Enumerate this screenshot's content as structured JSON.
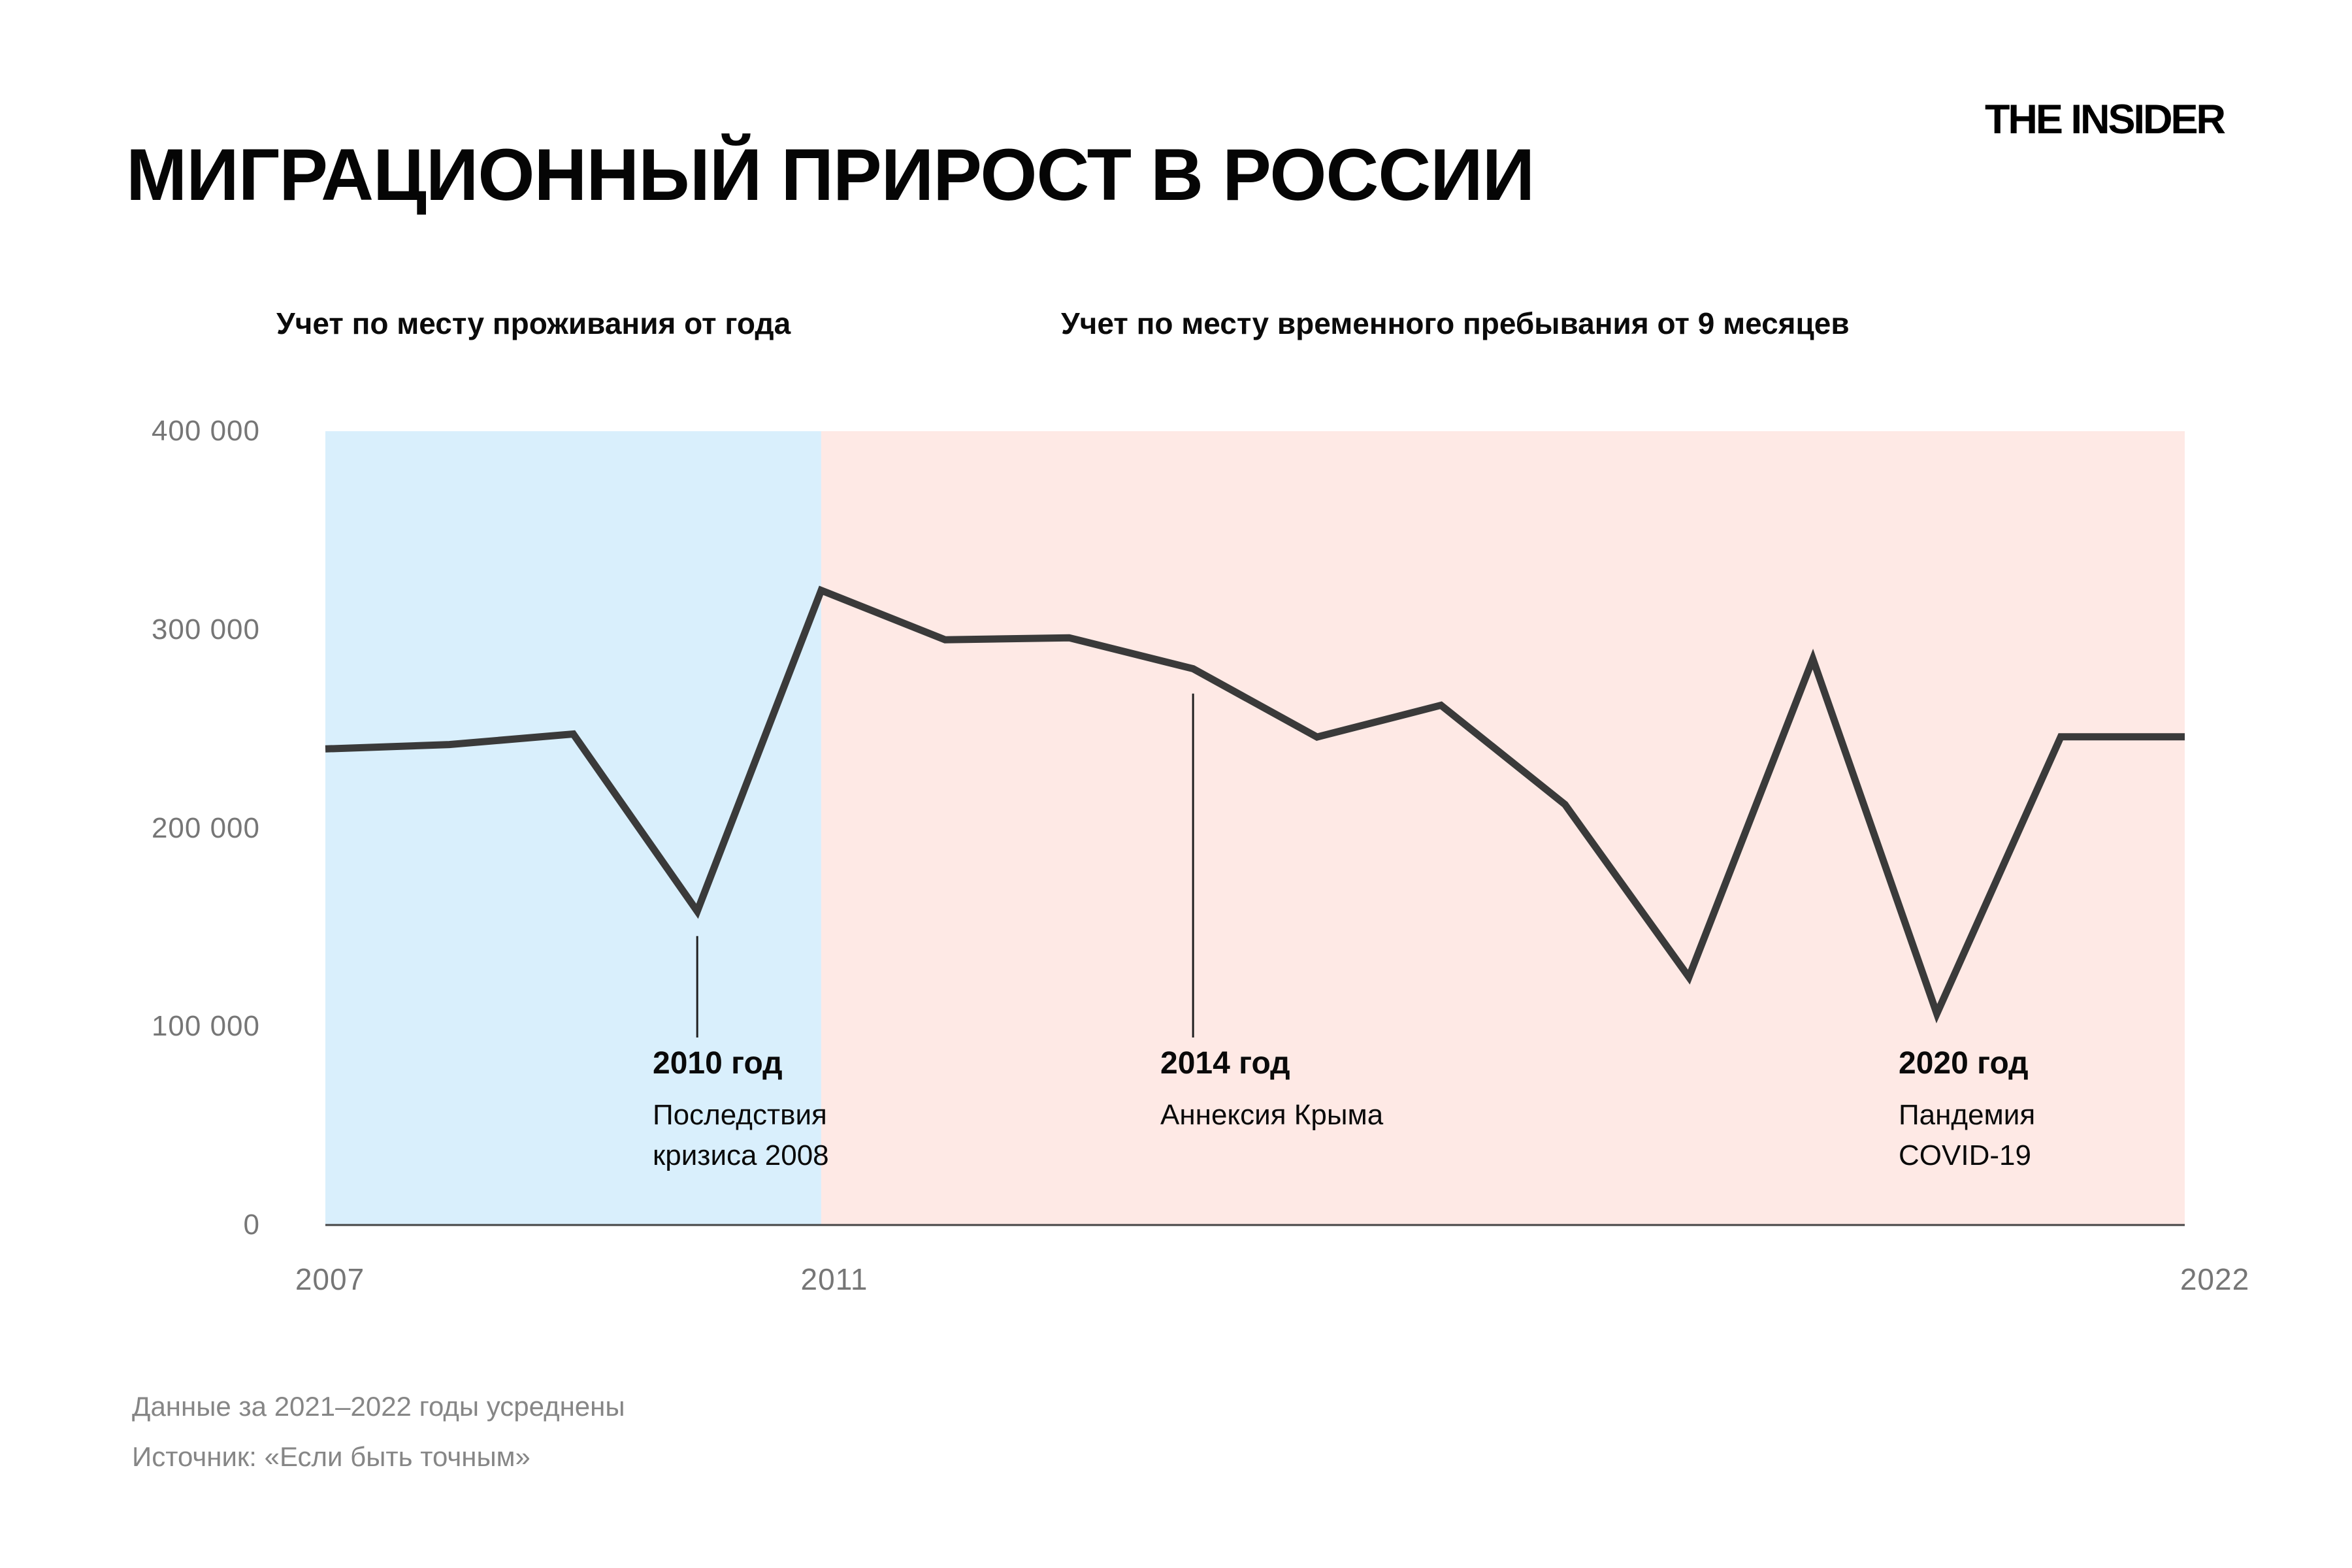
{
  "header": {
    "title": "МИГРАЦИОННЫЙ ПРИРОСТ В РОССИИ",
    "logo": "THE INSIDER"
  },
  "chart_data": {
    "type": "line",
    "title": "МИГРАЦИОННЫЙ ПРИРОСТ В РОССИИ",
    "x": [
      2007,
      2008,
      2009,
      2010,
      2011,
      2012,
      2013,
      2014,
      2015,
      2016,
      2017,
      2018,
      2019,
      2020,
      2021,
      2022
    ],
    "values": [
      239900,
      242100,
      247400,
      158100,
      319800,
      294900,
      295900,
      280300,
      245900,
      261900,
      211900,
      124900,
      285200,
      106500,
      246000,
      246000
    ],
    "ylim": [
      0,
      400000
    ],
    "grid": false,
    "line_color": "#3a3a3a",
    "axis_color": "#454545",
    "y_ticks": [
      {
        "value": 400000,
        "label": "400 000"
      },
      {
        "value": 300000,
        "label": "300 000"
      },
      {
        "value": 200000,
        "label": "200 000"
      },
      {
        "value": 100000,
        "label": "100 000"
      },
      {
        "value": 0,
        "label": "0"
      }
    ],
    "x_ticks": [
      {
        "year": 2007,
        "label": "2007"
      },
      {
        "year": 2011,
        "label": "2011"
      },
      {
        "year": 2022,
        "label": "2022"
      }
    ],
    "regions": [
      {
        "label": "Учет по месту проживания от года",
        "from": 2007,
        "to": 2011,
        "color": "#d9effc"
      },
      {
        "label": "Учет по месту временного пребывания от 9 месяцев",
        "from": 2011,
        "to": 2022,
        "color": "#fee9e5"
      }
    ],
    "annotations": [
      {
        "year": 2010,
        "title": "2010 год",
        "lines": [
          "Последствия",
          "кризиса 2008"
        ],
        "connector": true
      },
      {
        "year": 2014,
        "title": "2014 год",
        "lines": [
          "Аннексия Крыма"
        ],
        "connector": true
      },
      {
        "year": 2020,
        "title": "2020 год",
        "lines": [
          "Пандемия",
          "COVID-19"
        ],
        "connector": false
      }
    ]
  },
  "footer": {
    "note": "Данные за 2021–2022 годы усреднены",
    "source": "Источник: «Если быть точным»"
  }
}
